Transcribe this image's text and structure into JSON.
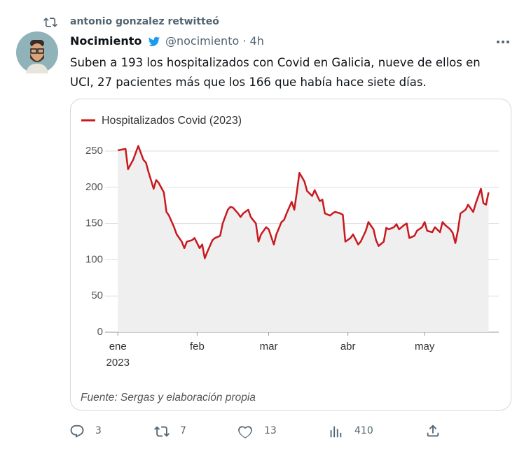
{
  "tweet": {
    "retweeted_by": "antonio gonzalez retwitteó",
    "author_name": "Nocimiento",
    "handle": "@nocimiento",
    "separator": "·",
    "time": "4h",
    "text": "Suben a 193 los hospitalizados con Covid en Galicia, nueve de ellos en UCI, 27 pacientes más que los 166 que había hace siete días.",
    "replies": "3",
    "retweets": "7",
    "likes": "13",
    "views": "410"
  },
  "chart_data": {
    "type": "line",
    "x": [
      0,
      3,
      4,
      6,
      8,
      10,
      11,
      12,
      14,
      15,
      16,
      18,
      19,
      20,
      22,
      23,
      25,
      26,
      27,
      29,
      30,
      32,
      33,
      34,
      35,
      37,
      38,
      40,
      41,
      43,
      44,
      45,
      47,
      48,
      49,
      51,
      52,
      54,
      55,
      56,
      58,
      59,
      61,
      62,
      64,
      65,
      66,
      68,
      69,
      70,
      71,
      73,
      74,
      76,
      77,
      79,
      80,
      81,
      83,
      84,
      85,
      87,
      88,
      89,
      91,
      92,
      94,
      95,
      97,
      98,
      100,
      101,
      102,
      104,
      105,
      106,
      108,
      109,
      110,
      112,
      113,
      114,
      116,
      117,
      119,
      120,
      121,
      123,
      124,
      126,
      127,
      128,
      130,
      131,
      132,
      133,
      134,
      136,
      137,
      139,
      140,
      142,
      143,
      144,
      145
    ],
    "series": [
      {
        "name": "Hospitalizados Covid (2023)",
        "color": "#c8191e",
        "values": [
          251,
          253,
          225,
          238,
          257,
          238,
          234,
          221,
          198,
          210,
          206,
          193,
          166,
          161,
          145,
          135,
          125,
          116,
          125,
          127,
          130,
          116,
          121,
          102,
          111,
          127,
          130,
          133,
          150,
          169,
          173,
          172,
          164,
          159,
          164,
          169,
          159,
          150,
          125,
          135,
          145,
          142,
          121,
          135,
          152,
          155,
          164,
          180,
          169,
          193,
          220,
          208,
          195,
          188,
          196,
          181,
          183,
          164,
          161,
          164,
          166,
          164,
          162,
          125,
          130,
          135,
          121,
          125,
          140,
          152,
          142,
          127,
          119,
          125,
          144,
          142,
          145,
          149,
          142,
          148,
          150,
          130,
          133,
          140,
          145,
          152,
          140,
          138,
          145,
          138,
          152,
          148,
          142,
          137,
          123,
          140,
          164,
          169,
          176,
          166,
          178,
          198,
          178,
          176,
          193
        ]
      }
    ],
    "xlim": [
      -5,
      149
    ],
    "xticks": [
      {
        "value": 0,
        "label": "ene"
      },
      {
        "value": 31,
        "label": "feb"
      },
      {
        "value": 59,
        "label": "mar"
      },
      {
        "value": 90,
        "label": "abr"
      },
      {
        "value": 120,
        "label": "may"
      }
    ],
    "x_year_label": "2023",
    "ylim": [
      0,
      250
    ],
    "yticks": [
      0,
      50,
      100,
      150,
      200,
      250
    ],
    "grid": true,
    "area_color": "#efefef",
    "source": "Fuente: Sergas y elaboración propia"
  }
}
